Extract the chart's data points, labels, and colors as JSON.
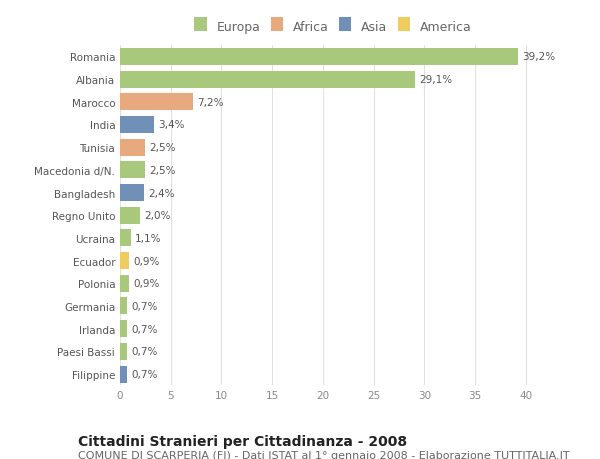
{
  "countries": [
    "Romania",
    "Albania",
    "Marocco",
    "India",
    "Tunisia",
    "Macedonia d/N.",
    "Bangladesh",
    "Regno Unito",
    "Ucraina",
    "Ecuador",
    "Polonia",
    "Germania",
    "Irlanda",
    "Paesi Bassi",
    "Filippine"
  ],
  "values": [
    39.2,
    29.1,
    7.2,
    3.4,
    2.5,
    2.5,
    2.4,
    2.0,
    1.1,
    0.9,
    0.9,
    0.7,
    0.7,
    0.7,
    0.7
  ],
  "labels": [
    "39,2%",
    "29,1%",
    "7,2%",
    "3,4%",
    "2,5%",
    "2,5%",
    "2,4%",
    "2,0%",
    "1,1%",
    "0,9%",
    "0,9%",
    "0,7%",
    "0,7%",
    "0,7%",
    "0,7%"
  ],
  "continents": [
    "Europa",
    "Europa",
    "Africa",
    "Asia",
    "Africa",
    "Europa",
    "Asia",
    "Europa",
    "Europa",
    "America",
    "Europa",
    "Europa",
    "Europa",
    "Europa",
    "Asia"
  ],
  "continent_colors": {
    "Europa": "#a8c87c",
    "Africa": "#e8a97e",
    "Asia": "#7090b8",
    "America": "#f0cc60"
  },
  "legend_order": [
    "Europa",
    "Africa",
    "Asia",
    "America"
  ],
  "title": "Cittadini Stranieri per Cittadinanza - 2008",
  "subtitle": "COMUNE DI SCARPERIA (FI) - Dati ISTAT al 1° gennaio 2008 - Elaborazione TUTTITALIA.IT",
  "xlim": [
    0,
    42
  ],
  "xticks": [
    0,
    5,
    10,
    15,
    20,
    25,
    30,
    35,
    40
  ],
  "background_color": "#ffffff",
  "grid_color": "#e0e0e0",
  "bar_height": 0.75,
  "title_fontsize": 10,
  "subtitle_fontsize": 8,
  "label_fontsize": 7.5,
  "tick_fontsize": 7.5,
  "legend_fontsize": 9
}
